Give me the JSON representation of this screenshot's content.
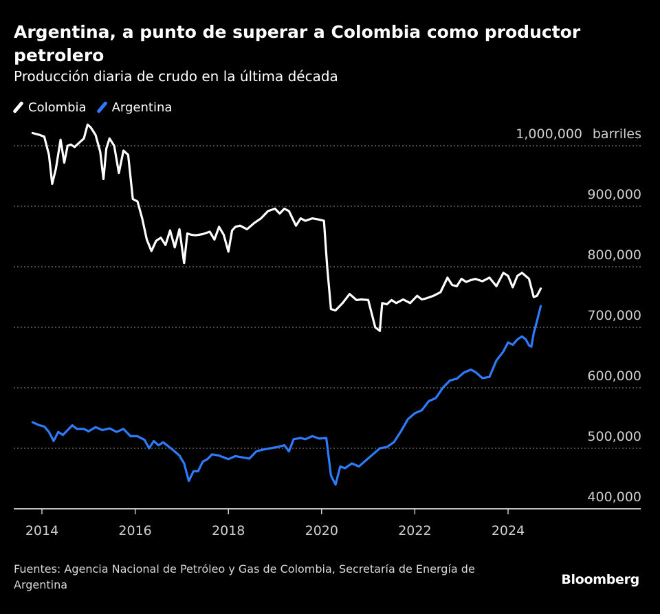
{
  "header": {
    "title": "Argentina, a punto de superar a Colombia como productor petrolero",
    "subtitle": "Producción diaria de crudo en la última década"
  },
  "legend": [
    {
      "label": "Colombia",
      "color": "#ffffff"
    },
    {
      "label": "Argentina",
      "color": "#2f7bff"
    }
  ],
  "footer": {
    "source": "Fuentes: Agencia Nacional de Petróleo y Gas de Colombia, Secretaría de Energía de Argentina",
    "brand": "Bloomberg"
  },
  "chart_data": {
    "type": "line",
    "y_unit": "barriles",
    "ylim": [
      400000,
      1000000
    ],
    "y_ticks": [
      {
        "value": 1000000,
        "label": "1,000,000"
      },
      {
        "value": 900000,
        "label": "900,000"
      },
      {
        "value": 800000,
        "label": "800,000"
      },
      {
        "value": 700000,
        "label": "700,000"
      },
      {
        "value": 600000,
        "label": "600,000"
      },
      {
        "value": 500000,
        "label": "500,000"
      },
      {
        "value": 400000,
        "label": "400,000"
      }
    ],
    "xlim": [
      2013.7,
      2024.8
    ],
    "x_ticks": [
      "2014",
      "2016",
      "2018",
      "2020",
      "2022",
      "2024"
    ],
    "grid": true,
    "legend_position": "top-left",
    "series": [
      {
        "name": "Colombia",
        "color": "#ffffff",
        "x": [
          2013.8,
          2013.95,
          2014.05,
          2014.15,
          2014.22,
          2014.3,
          2014.4,
          2014.48,
          2014.55,
          2014.62,
          2014.7,
          2014.8,
          2014.9,
          2014.98,
          2015.05,
          2015.15,
          2015.25,
          2015.32,
          2015.38,
          2015.45,
          2015.55,
          2015.65,
          2015.75,
          2015.85,
          2015.95,
          2016.05,
          2016.15,
          2016.25,
          2016.35,
          2016.45,
          2016.55,
          2016.65,
          2016.75,
          2016.85,
          2016.95,
          2017.05,
          2017.12,
          2017.2,
          2017.3,
          2017.45,
          2017.6,
          2017.7,
          2017.8,
          2017.9,
          2018.0,
          2018.08,
          2018.15,
          2018.25,
          2018.4,
          2018.55,
          2018.7,
          2018.85,
          2019.0,
          2019.1,
          2019.2,
          2019.3,
          2019.45,
          2019.55,
          2019.65,
          2019.8,
          2019.95,
          2020.05,
          2020.12,
          2020.2,
          2020.3,
          2020.45,
          2020.6,
          2020.75,
          2020.85,
          2021.0,
          2021.15,
          2021.25,
          2021.3,
          2021.4,
          2021.5,
          2021.6,
          2021.75,
          2021.9,
          2022.05,
          2022.15,
          2022.25,
          2022.4,
          2022.55,
          2022.7,
          2022.8,
          2022.9,
          2023.0,
          2023.1,
          2023.2,
          2023.3,
          2023.45,
          2023.6,
          2023.75,
          2023.9,
          2024.0,
          2024.1,
          2024.2,
          2024.3,
          2024.45,
          2024.55,
          2024.62,
          2024.7
        ],
        "values": [
          1021000,
          1018000,
          1015000,
          985000,
          937000,
          962000,
          1010000,
          972000,
          1000000,
          1002000,
          998000,
          1005000,
          1012000,
          1035000,
          1030000,
          1018000,
          990000,
          945000,
          995000,
          1012000,
          1000000,
          955000,
          992000,
          985000,
          912000,
          908000,
          880000,
          845000,
          826000,
          843000,
          848000,
          836000,
          860000,
          832000,
          862000,
          806000,
          855000,
          853000,
          852000,
          854000,
          858000,
          845000,
          866000,
          853000,
          825000,
          860000,
          866000,
          868000,
          862000,
          872000,
          880000,
          892000,
          896000,
          888000,
          896000,
          892000,
          868000,
          880000,
          876000,
          880000,
          878000,
          876000,
          800000,
          730000,
          728000,
          740000,
          755000,
          745000,
          746000,
          745000,
          700000,
          694000,
          740000,
          738000,
          745000,
          740000,
          746000,
          740000,
          752000,
          746000,
          748000,
          752000,
          758000,
          782000,
          770000,
          768000,
          780000,
          775000,
          778000,
          780000,
          776000,
          782000,
          768000,
          790000,
          785000,
          766000,
          785000,
          790000,
          780000,
          750000,
          752000,
          764000
        ]
      },
      {
        "name": "Argentina",
        "color": "#2f7bff",
        "x": [
          2013.8,
          2013.95,
          2014.05,
          2014.15,
          2014.25,
          2014.35,
          2014.45,
          2014.55,
          2014.65,
          2014.75,
          2014.9,
          2015.0,
          2015.15,
          2015.3,
          2015.45,
          2015.6,
          2015.75,
          2015.9,
          2016.05,
          2016.2,
          2016.3,
          2016.4,
          2016.5,
          2016.6,
          2016.8,
          2016.95,
          2017.05,
          2017.15,
          2017.25,
          2017.35,
          2017.45,
          2017.55,
          2017.65,
          2017.8,
          2018.0,
          2018.15,
          2018.3,
          2018.45,
          2018.6,
          2018.75,
          2018.9,
          2019.05,
          2019.2,
          2019.3,
          2019.4,
          2019.55,
          2019.65,
          2019.8,
          2019.95,
          2020.1,
          2020.2,
          2020.3,
          2020.4,
          2020.5,
          2020.65,
          2020.8,
          2020.95,
          2021.1,
          2021.25,
          2021.4,
          2021.55,
          2021.7,
          2021.85,
          2022.0,
          2022.15,
          2022.3,
          2022.45,
          2022.6,
          2022.75,
          2022.9,
          2023.05,
          2023.2,
          2023.3,
          2023.45,
          2023.6,
          2023.75,
          2023.9,
          2024.0,
          2024.1,
          2024.2,
          2024.3,
          2024.38,
          2024.45,
          2024.5,
          2024.55,
          2024.62,
          2024.7
        ],
        "values": [
          543000,
          538000,
          536000,
          527000,
          512000,
          527000,
          522000,
          530000,
          538000,
          532000,
          532000,
          528000,
          535000,
          530000,
          533000,
          527000,
          532000,
          520000,
          520000,
          514000,
          500000,
          512000,
          505000,
          510000,
          498000,
          488000,
          475000,
          446000,
          462000,
          462000,
          478000,
          482000,
          490000,
          488000,
          482000,
          487000,
          485000,
          483000,
          495000,
          498000,
          500000,
          502000,
          505000,
          495000,
          515000,
          517000,
          515000,
          520000,
          516000,
          517000,
          455000,
          440000,
          470000,
          467000,
          475000,
          470000,
          480000,
          490000,
          500000,
          502000,
          510000,
          528000,
          548000,
          558000,
          563000,
          578000,
          583000,
          600000,
          612000,
          615000,
          625000,
          630000,
          626000,
          616000,
          618000,
          645000,
          660000,
          675000,
          671000,
          680000,
          685000,
          680000,
          670000,
          668000,
          690000,
          710000,
          735000
        ]
      }
    ]
  }
}
